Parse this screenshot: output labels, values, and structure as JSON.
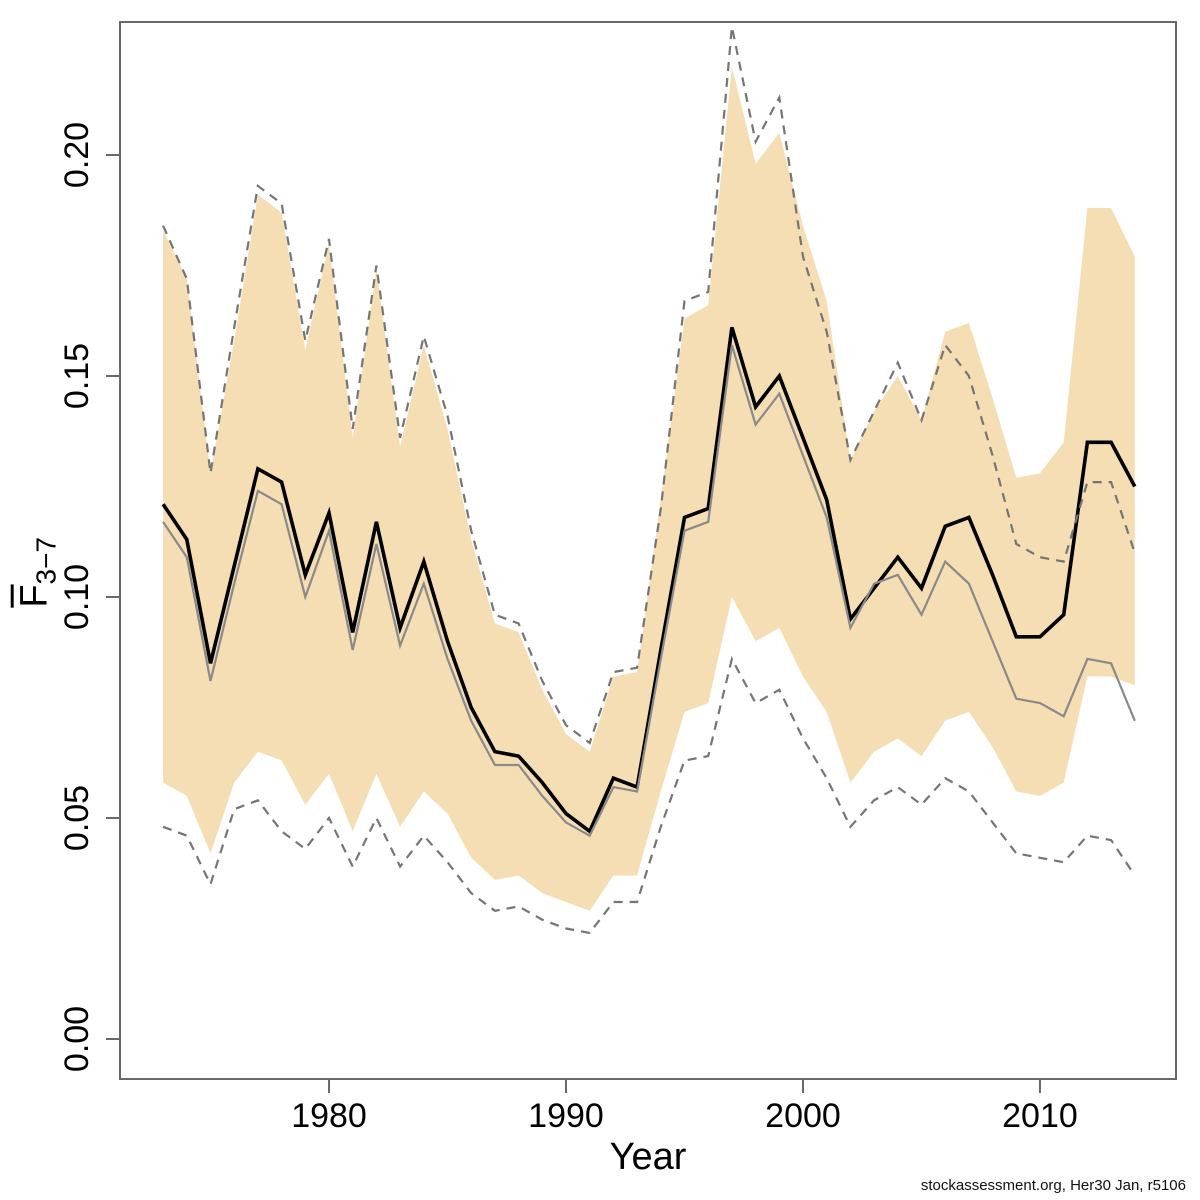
{
  "figure": {
    "watermark": "stockassessment.org, Her30 Jan, r5106"
  },
  "axes": {
    "x": {
      "label": "Year",
      "ticks": [
        1980,
        1990,
        2000,
        2010
      ],
      "tick_labels": [
        "1980",
        "1990",
        "2000",
        "2010"
      ],
      "lim": [
        1971.18,
        2015.74
      ]
    },
    "y": {
      "label_main": "F",
      "label_sub": "3−7",
      "ticks": [
        0.0,
        0.05,
        0.1,
        0.15,
        0.2
      ],
      "tick_labels": [
        "0.00",
        "0.05",
        "0.10",
        "0.15",
        "0.20"
      ],
      "lim": [
        -0.00905,
        0.23009
      ]
    }
  },
  "colors": {
    "band_fill": "#f5deb3",
    "estimate_line": "#000000",
    "comparison_line": "#8a8a8a",
    "dashed_bound": "#757575",
    "axis": "#696969",
    "tick_text": "#000000"
  },
  "chart_data": {
    "type": "line",
    "title": "",
    "xlabel": "Year",
    "ylabel": "Fbar 3-7",
    "legend": "none",
    "grid": false,
    "xlim": [
      1971.18,
      2015.74
    ],
    "ylim": [
      -0.00905,
      0.23009
    ],
    "x": [
      1973,
      1974,
      1975,
      1976,
      1977,
      1978,
      1979,
      1980,
      1981,
      1982,
      1983,
      1984,
      1985,
      1986,
      1987,
      1988,
      1989,
      1990,
      1991,
      1992,
      1993,
      1994,
      1995,
      1996,
      1997,
      1998,
      1999,
      2000,
      2001,
      2002,
      2003,
      2004,
      2005,
      2006,
      2007,
      2008,
      2009,
      2010,
      2011,
      2012,
      2013,
      2014
    ],
    "series": [
      {
        "name": "fbar-estimate",
        "style": "solid",
        "color": "#000000",
        "width": 3.6,
        "values": [
          0.121,
          0.113,
          0.085,
          0.107,
          0.129,
          0.126,
          0.105,
          0.119,
          0.092,
          0.117,
          0.093,
          0.108,
          0.09,
          0.075,
          0.065,
          0.064,
          0.058,
          0.051,
          0.047,
          0.059,
          0.057,
          0.088,
          0.118,
          0.12,
          0.161,
          0.143,
          0.15,
          0.136,
          0.122,
          0.095,
          0.102,
          0.109,
          0.102,
          0.116,
          0.118,
          0.105,
          0.091,
          0.091,
          0.096,
          0.135,
          0.135,
          0.125
        ]
      },
      {
        "name": "comparison-run-estimate",
        "style": "solid",
        "color": "#8a8a8a",
        "width": 2.2,
        "values": [
          0.117,
          0.109,
          0.081,
          0.103,
          0.124,
          0.121,
          0.1,
          0.115,
          0.088,
          0.112,
          0.089,
          0.103,
          0.086,
          0.072,
          0.062,
          0.062,
          0.055,
          0.049,
          0.046,
          0.057,
          0.056,
          0.086,
          0.115,
          0.117,
          0.157,
          0.139,
          0.146,
          0.132,
          0.118,
          0.093,
          0.103,
          0.105,
          0.096,
          0.108,
          0.103,
          0.09,
          0.077,
          0.076,
          0.073,
          0.086,
          0.085,
          0.072
        ]
      },
      {
        "name": "outer-ci-upper",
        "style": "dashed",
        "color": "#757575",
        "width": 2.2,
        "values": [
          0.184,
          0.172,
          0.128,
          0.161,
          0.193,
          0.189,
          0.158,
          0.181,
          0.138,
          0.175,
          0.136,
          0.159,
          0.141,
          0.115,
          0.096,
          0.094,
          0.081,
          0.071,
          0.067,
          0.083,
          0.084,
          0.12,
          0.167,
          0.169,
          0.229,
          0.203,
          0.213,
          0.177,
          0.16,
          0.131,
          0.142,
          0.153,
          0.14,
          0.157,
          0.15,
          0.132,
          0.112,
          0.109,
          0.108,
          0.126,
          0.126,
          0.11
        ]
      },
      {
        "name": "outer-ci-lower",
        "style": "dashed",
        "color": "#757575",
        "width": 2.2,
        "values": [
          0.048,
          0.046,
          0.035,
          0.052,
          0.054,
          0.047,
          0.043,
          0.05,
          0.039,
          0.05,
          0.039,
          0.046,
          0.04,
          0.033,
          0.029,
          0.03,
          0.027,
          0.025,
          0.024,
          0.031,
          0.031,
          0.048,
          0.063,
          0.064,
          0.086,
          0.076,
          0.079,
          0.068,
          0.059,
          0.048,
          0.054,
          0.057,
          0.053,
          0.059,
          0.056,
          0.049,
          0.042,
          0.041,
          0.04,
          0.046,
          0.045,
          0.037
        ]
      }
    ],
    "band": {
      "name": "confidence-band",
      "fill": "#f5deb3",
      "upper": [
        0.183,
        0.172,
        0.128,
        0.158,
        0.191,
        0.187,
        0.156,
        0.18,
        0.136,
        0.174,
        0.134,
        0.157,
        0.138,
        0.113,
        0.094,
        0.092,
        0.079,
        0.069,
        0.065,
        0.082,
        0.083,
        0.122,
        0.163,
        0.166,
        0.22,
        0.198,
        0.205,
        0.184,
        0.167,
        0.131,
        0.142,
        0.15,
        0.14,
        0.16,
        0.162,
        0.145,
        0.127,
        0.128,
        0.135,
        0.188,
        0.188,
        0.177
      ],
      "lower": [
        0.058,
        0.055,
        0.042,
        0.058,
        0.065,
        0.063,
        0.053,
        0.06,
        0.047,
        0.06,
        0.048,
        0.056,
        0.051,
        0.041,
        0.036,
        0.037,
        0.033,
        0.031,
        0.029,
        0.037,
        0.037,
        0.056,
        0.074,
        0.076,
        0.1,
        0.09,
        0.093,
        0.082,
        0.074,
        0.058,
        0.065,
        0.068,
        0.064,
        0.072,
        0.074,
        0.066,
        0.056,
        0.055,
        0.058,
        0.082,
        0.082,
        0.08
      ]
    }
  }
}
